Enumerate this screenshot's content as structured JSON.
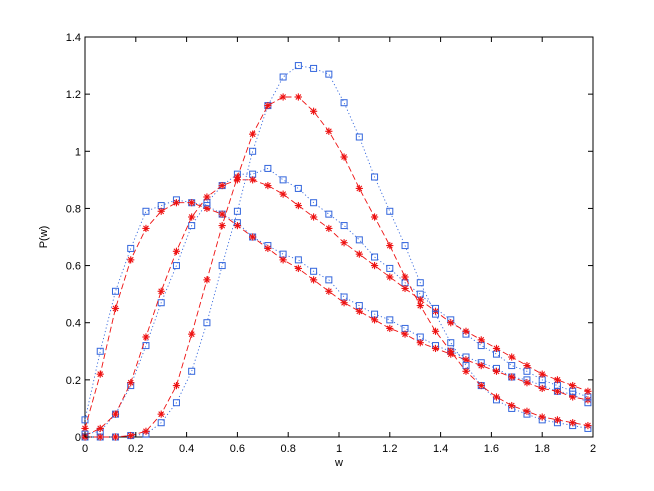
{
  "chart_data": {
    "type": "scatter",
    "title": "",
    "xlabel": "w",
    "ylabel": "P(w)",
    "xlim": [
      0,
      2
    ],
    "ylim": [
      0,
      1.4
    ],
    "xticks": [
      "0",
      "0.2",
      "0.4",
      "0.6",
      "0.8",
      "1",
      "1.2",
      "1.4",
      "1.6",
      "1.8",
      "2"
    ],
    "yticks": [
      "0",
      "0.2",
      "0.4",
      "0.6",
      "0.8",
      "1",
      "1.2",
      "1.4"
    ],
    "grid": false,
    "colors": {
      "simulation": "#3366dd",
      "theory": "#ee1111"
    },
    "series": [
      {
        "kind": "simulation",
        "marker": "square",
        "line": "dotted",
        "x": [
          0.0,
          0.06,
          0.12,
          0.18,
          0.24,
          0.3,
          0.36,
          0.42,
          0.48,
          0.54,
          0.6,
          0.66,
          0.72,
          0.78,
          0.84,
          0.9,
          0.96,
          1.02,
          1.08,
          1.14,
          1.2,
          1.26,
          1.32,
          1.38,
          1.44,
          1.5,
          1.56,
          1.62,
          1.68,
          1.74,
          1.8,
          1.86,
          1.92,
          1.98
        ],
        "y": [
          0.06,
          0.3,
          0.51,
          0.66,
          0.79,
          0.81,
          0.83,
          0.82,
          0.81,
          0.78,
          0.75,
          0.7,
          0.67,
          0.64,
          0.62,
          0.58,
          0.55,
          0.49,
          0.46,
          0.43,
          0.41,
          0.38,
          0.35,
          0.32,
          0.3,
          0.28,
          0.26,
          0.24,
          0.21,
          0.2,
          0.18,
          0.16,
          0.15,
          0.12
        ]
      },
      {
        "kind": "theory",
        "marker": "asterisk",
        "line": "dashed",
        "x": [
          0.0,
          0.06,
          0.12,
          0.18,
          0.24,
          0.3,
          0.36,
          0.42,
          0.48,
          0.54,
          0.6,
          0.66,
          0.72,
          0.78,
          0.84,
          0.9,
          0.96,
          1.02,
          1.08,
          1.14,
          1.2,
          1.26,
          1.32,
          1.38,
          1.44,
          1.5,
          1.56,
          1.62,
          1.68,
          1.74,
          1.8,
          1.86,
          1.92,
          1.98
        ],
        "y": [
          0.03,
          0.22,
          0.45,
          0.62,
          0.73,
          0.79,
          0.82,
          0.82,
          0.8,
          0.78,
          0.74,
          0.7,
          0.66,
          0.62,
          0.59,
          0.55,
          0.51,
          0.47,
          0.44,
          0.41,
          0.38,
          0.36,
          0.33,
          0.31,
          0.29,
          0.27,
          0.25,
          0.23,
          0.21,
          0.19,
          0.17,
          0.16,
          0.14,
          0.13
        ]
      },
      {
        "kind": "simulation",
        "marker": "square",
        "line": "dotted",
        "x": [
          0.0,
          0.06,
          0.12,
          0.18,
          0.24,
          0.3,
          0.36,
          0.42,
          0.48,
          0.54,
          0.6,
          0.66,
          0.72,
          0.78,
          0.84,
          0.9,
          0.96,
          1.02,
          1.08,
          1.14,
          1.2,
          1.26,
          1.32,
          1.38,
          1.44,
          1.5,
          1.56,
          1.62,
          1.68,
          1.74,
          1.8,
          1.86,
          1.92,
          1.98
        ],
        "y": [
          0.01,
          0.02,
          0.08,
          0.18,
          0.32,
          0.47,
          0.6,
          0.74,
          0.82,
          0.88,
          0.92,
          0.92,
          0.94,
          0.9,
          0.87,
          0.82,
          0.78,
          0.74,
          0.69,
          0.63,
          0.59,
          0.54,
          0.5,
          0.45,
          0.41,
          0.36,
          0.32,
          0.29,
          0.25,
          0.23,
          0.2,
          0.18,
          0.16,
          0.14
        ]
      },
      {
        "kind": "theory",
        "marker": "asterisk",
        "line": "dashed",
        "x": [
          0.0,
          0.06,
          0.12,
          0.18,
          0.24,
          0.3,
          0.36,
          0.42,
          0.48,
          0.54,
          0.6,
          0.66,
          0.72,
          0.78,
          0.84,
          0.9,
          0.96,
          1.02,
          1.08,
          1.14,
          1.2,
          1.26,
          1.32,
          1.38,
          1.44,
          1.5,
          1.56,
          1.62,
          1.68,
          1.74,
          1.8,
          1.86,
          1.92,
          1.98
        ],
        "y": [
          0.005,
          0.03,
          0.08,
          0.19,
          0.35,
          0.51,
          0.65,
          0.77,
          0.84,
          0.88,
          0.9,
          0.9,
          0.88,
          0.85,
          0.81,
          0.77,
          0.73,
          0.68,
          0.64,
          0.6,
          0.56,
          0.52,
          0.48,
          0.44,
          0.4,
          0.37,
          0.34,
          0.31,
          0.28,
          0.25,
          0.22,
          0.2,
          0.18,
          0.16
        ]
      },
      {
        "kind": "simulation",
        "marker": "square",
        "line": "dotted",
        "x": [
          0.0,
          0.06,
          0.12,
          0.18,
          0.24,
          0.3,
          0.36,
          0.42,
          0.48,
          0.54,
          0.6,
          0.66,
          0.72,
          0.78,
          0.84,
          0.9,
          0.96,
          1.02,
          1.08,
          1.14,
          1.2,
          1.26,
          1.32,
          1.38,
          1.44,
          1.5,
          1.56,
          1.62,
          1.68,
          1.74,
          1.8,
          1.86,
          1.92,
          1.98
        ],
        "y": [
          0.0,
          0.0,
          0.0,
          0.005,
          0.01,
          0.05,
          0.12,
          0.23,
          0.4,
          0.6,
          0.79,
          1.0,
          1.16,
          1.26,
          1.3,
          1.29,
          1.27,
          1.17,
          1.05,
          0.91,
          0.79,
          0.67,
          0.54,
          0.43,
          0.33,
          0.25,
          0.18,
          0.13,
          0.1,
          0.08,
          0.06,
          0.05,
          0.04,
          0.03
        ]
      },
      {
        "kind": "theory",
        "marker": "asterisk",
        "line": "dashed",
        "x": [
          0.0,
          0.06,
          0.12,
          0.18,
          0.24,
          0.3,
          0.36,
          0.42,
          0.48,
          0.54,
          0.6,
          0.66,
          0.72,
          0.78,
          0.84,
          0.9,
          0.96,
          1.02,
          1.08,
          1.14,
          1.2,
          1.26,
          1.32,
          1.38,
          1.44,
          1.5,
          1.56,
          1.62,
          1.68,
          1.74,
          1.8,
          1.86,
          1.92,
          1.98
        ],
        "y": [
          0.0,
          0.0,
          0.0,
          0.005,
          0.02,
          0.08,
          0.18,
          0.36,
          0.55,
          0.74,
          0.91,
          1.06,
          1.16,
          1.19,
          1.19,
          1.14,
          1.07,
          0.98,
          0.87,
          0.77,
          0.67,
          0.56,
          0.46,
          0.37,
          0.3,
          0.23,
          0.18,
          0.14,
          0.11,
          0.09,
          0.07,
          0.06,
          0.05,
          0.04
        ]
      }
    ]
  }
}
